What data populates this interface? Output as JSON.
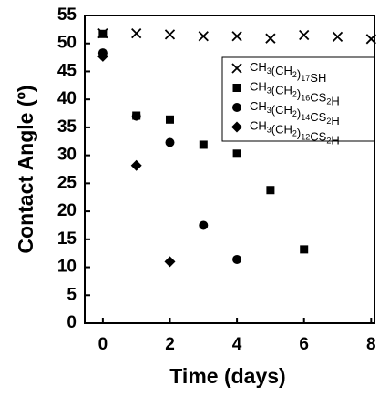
{
  "chart_data": {
    "type": "scatter",
    "x_label": "Time (days)",
    "y_label": "Contact Angle (º)",
    "xlim": [
      -0.54,
      8.1
    ],
    "ylim": [
      0,
      55
    ],
    "xticks": [
      0,
      2,
      4,
      6,
      8
    ],
    "yticks": [
      0,
      5,
      10,
      15,
      20,
      25,
      30,
      35,
      40,
      45,
      50,
      55
    ],
    "legend": "upper right",
    "series": [
      {
        "name": "CH3(CH2)17SH",
        "color": "#000000",
        "marker": "x",
        "x": [
          0,
          1,
          2,
          3,
          4,
          5,
          6,
          7,
          8
        ],
        "values": [
          51.8,
          51.8,
          51.6,
          51.3,
          51.3,
          50.9,
          51.5,
          51.2,
          50.8
        ]
      },
      {
        "name": "CH3(CH2)16CS2H",
        "color": "#000000",
        "marker": "square",
        "x": [
          0,
          1,
          2,
          3,
          4,
          5,
          6
        ],
        "values": [
          51.7,
          37.1,
          36.4,
          31.9,
          30.3,
          23.8,
          13.2
        ]
      },
      {
        "name": "CH3(CH2)14CS2H",
        "color": "#000000",
        "marker": "circle",
        "x": [
          0,
          1,
          2,
          3,
          4
        ],
        "values": [
          48.3,
          37.0,
          32.3,
          17.5,
          11.4
        ]
      },
      {
        "name": "CH3(CH2)12CS2H",
        "color": "#000000",
        "marker": "diamond",
        "x": [
          0,
          1,
          2
        ],
        "values": [
          47.7,
          28.2,
          11.0
        ]
      }
    ]
  }
}
